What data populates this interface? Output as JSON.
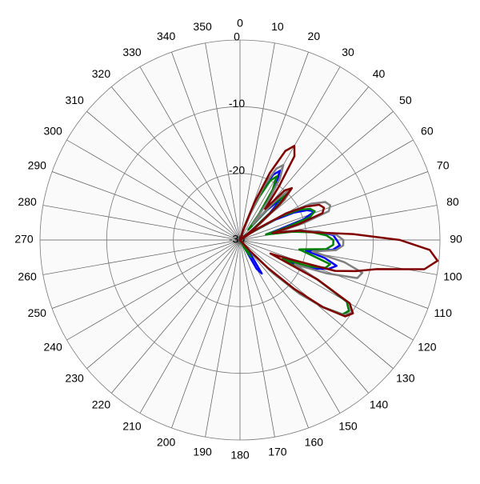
{
  "chart_data": {
    "type": "polar",
    "rlim": [
      -30,
      0
    ],
    "rticks": [
      0,
      -10,
      -20,
      -30
    ],
    "angle_ticks": [
      0,
      10,
      20,
      30,
      40,
      50,
      60,
      70,
      80,
      90,
      100,
      110,
      120,
      130,
      140,
      150,
      160,
      170,
      180,
      190,
      200,
      210,
      220,
      230,
      240,
      250,
      260,
      270,
      280,
      290,
      300,
      310,
      320,
      330,
      340,
      350
    ],
    "grid": true,
    "x": [
      0,
      3,
      6,
      9,
      12,
      15,
      18,
      21,
      24,
      27,
      30,
      33,
      36,
      39,
      42,
      45,
      48,
      51,
      54,
      57,
      60,
      63,
      66,
      69,
      72,
      75,
      78,
      81,
      84,
      87,
      90,
      93,
      96,
      99,
      102,
      105,
      108,
      111,
      114,
      117,
      120,
      123,
      126,
      129,
      132,
      135,
      138,
      141,
      144,
      147,
      150,
      153,
      156,
      159,
      162,
      165,
      168,
      171,
      174,
      177,
      180
    ],
    "series": [
      {
        "color": "#0000ff",
        "values": [
          -30,
          -30,
          -30,
          -30,
          -30,
          -30,
          -29,
          -26,
          -22,
          -19,
          -18,
          -20,
          -24,
          -28,
          -24,
          -21,
          -24,
          -28,
          -30,
          -28,
          -24,
          -21,
          -19,
          -18,
          -20,
          -24,
          -26,
          -21,
          -18,
          -16,
          -15.5,
          -15,
          -16,
          -20,
          -17,
          -15,
          -16,
          -18,
          -22,
          -17,
          -11.5,
          -10.5,
          -11,
          -14,
          -18,
          -23,
          -28,
          -30,
          -27,
          -24,
          -25,
          -30,
          -30,
          -30,
          -30,
          -30,
          -30,
          -30,
          -30,
          -30,
          -30
        ]
      },
      {
        "color": "#008000",
        "values": [
          -30,
          -30,
          -30,
          -30,
          -30,
          -30,
          -29,
          -26,
          -23,
          -20,
          -19,
          -21,
          -25,
          -28,
          -23,
          -20,
          -23,
          -28,
          -30,
          -28,
          -23,
          -20,
          -18.5,
          -18,
          -19,
          -23,
          -26,
          -22,
          -19,
          -17,
          -16,
          -16,
          -17,
          -21,
          -19,
          -16,
          -16.5,
          -19,
          -23,
          -17,
          -11.5,
          -10.5,
          -11,
          -14,
          -18,
          -23,
          -28,
          -30,
          -29,
          -27,
          -28,
          -30,
          -30,
          -30,
          -30,
          -30,
          -30,
          -30,
          -30,
          -30,
          -30
        ]
      },
      {
        "color": "#808080",
        "values": [
          -30,
          -30,
          -30,
          -30,
          -30,
          -30,
          -29,
          -26,
          -21,
          -18,
          -17,
          -19,
          -23,
          -27,
          -22,
          -19,
          -21,
          -26,
          -30,
          -27,
          -22,
          -18,
          -16,
          -15.5,
          -16,
          -20,
          -24,
          -21,
          -18,
          -15.5,
          -14.5,
          -14.5,
          -15.5,
          -19,
          -14,
          -11,
          -11.5,
          -16,
          -21,
          -17,
          -11,
          -10,
          -10.8,
          -14,
          -18,
          -23,
          -28,
          -30,
          -30,
          -30,
          -30,
          -30,
          -30,
          -30,
          -30,
          -30,
          -30,
          -30,
          -30,
          -30,
          -30
        ]
      },
      {
        "color": "#800000",
        "values": [
          -30,
          -30,
          -30,
          -30,
          -30,
          -30,
          -28,
          -24,
          -19,
          -15,
          -13.7,
          -15,
          -20,
          -24,
          -20,
          -19,
          -22,
          -27,
          -30,
          -27,
          -22,
          -19,
          -17,
          -16.5,
          -17,
          -21,
          -25,
          -21,
          -19,
          -13,
          -6,
          -1.5,
          -0.2,
          -2,
          -9,
          -12,
          -15,
          -22,
          -25,
          -17,
          -11,
          -9.8,
          -10.5,
          -14,
          -19,
          -24,
          -28,
          -30,
          -30,
          -30,
          -30,
          -30,
          -30,
          -30,
          -30,
          -30,
          -30,
          -30,
          -30,
          -30,
          -30
        ]
      }
    ]
  }
}
